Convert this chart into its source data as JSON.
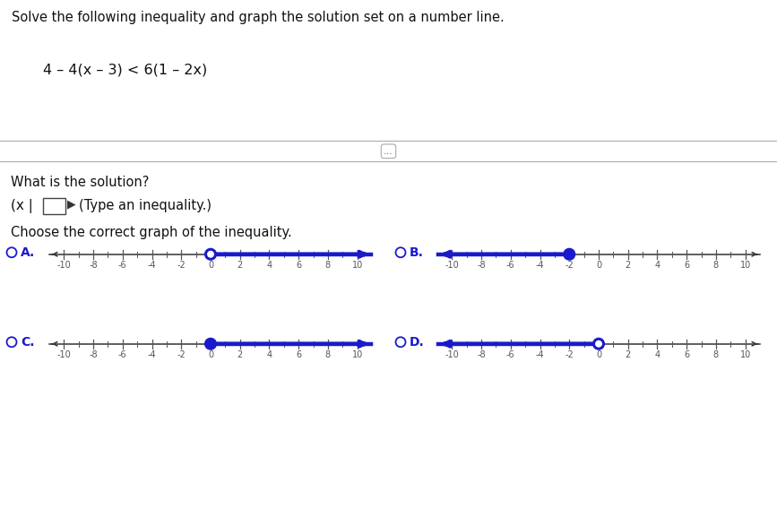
{
  "title_line1": "Solve the following inequality and graph the solution set on a number line.",
  "equation": "4 – 4(x – 3) < 6(1 – 2x)",
  "question1": "What is the solution?",
  "solution_prefix": "(x |",
  "solution_suffix": "▶  (Type an inequality.)",
  "question2": "Choose the correct graph of the inequality.",
  "number_lines": [
    {
      "label": "A.",
      "point": 0,
      "open": true,
      "direction": "right"
    },
    {
      "label": "B.",
      "point": -2,
      "open": false,
      "direction": "left"
    },
    {
      "label": "C.",
      "point": 0,
      "open": false,
      "direction": "right"
    },
    {
      "label": "D.",
      "point": 0,
      "open": true,
      "direction": "left"
    }
  ],
  "xmin": -11,
  "xmax": 11,
  "ticks_labeled": [
    -10,
    -8,
    -6,
    -4,
    -2,
    0,
    2,
    4,
    6,
    8,
    10
  ],
  "header_bg": "#d8d8d8",
  "header_text": "#111111",
  "content_bg": "#ffffff",
  "sep_bg": "#e0e0e0",
  "line_color": "#1a1acc",
  "axis_color": "#333333",
  "tick_color": "#555555",
  "radio_color": "#1a1acc",
  "label_color": "#1a1acc",
  "text_color": "#111111"
}
